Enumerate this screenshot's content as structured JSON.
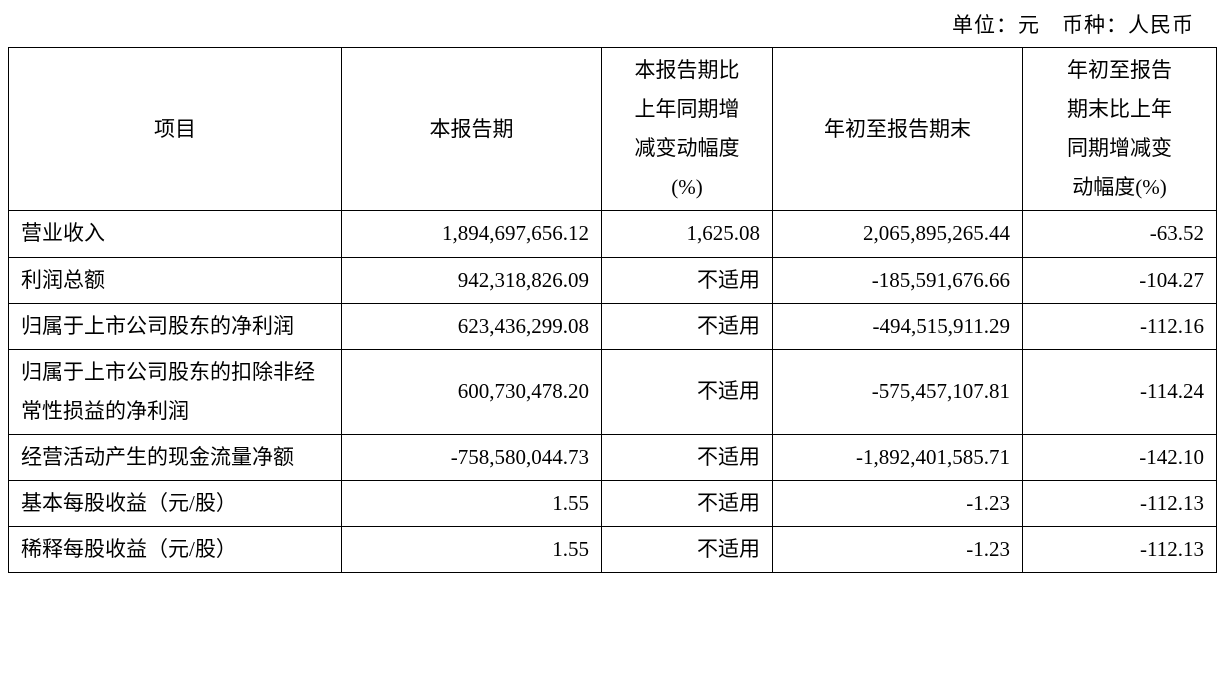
{
  "meta": {
    "unit_label": "单位：元　币种：人民币"
  },
  "table": {
    "headers": {
      "item": "项目",
      "current_period": "本报告期",
      "current_period_change": "本报告期比\n上年同期增\n减变动幅度\n(%)",
      "ytd": "年初至报告期末",
      "ytd_change": "年初至报告\n期末比上年\n同期增减变\n动幅度(%)"
    },
    "rows": [
      {
        "item": "营业收入",
        "current": "1,894,697,656.12",
        "change": "1,625.08",
        "ytd": "2,065,895,265.44",
        "ytd_change": "-63.52"
      },
      {
        "item": "利润总额",
        "current": "942,318,826.09",
        "change": "不适用",
        "ytd": "-185,591,676.66",
        "ytd_change": "-104.27"
      },
      {
        "item": "归属于上市公司股东的净利润",
        "current": "623,436,299.08",
        "change": "不适用",
        "ytd": "-494,515,911.29",
        "ytd_change": "-112.16"
      },
      {
        "item": "归属于上市公司股东的扣除非经常性损益的净利润",
        "current": "600,730,478.20",
        "change": "不适用",
        "ytd": "-575,457,107.81",
        "ytd_change": "-114.24"
      },
      {
        "item": "经营活动产生的现金流量净额",
        "current": "-758,580,044.73",
        "change": "不适用",
        "ytd": "-1,892,401,585.71",
        "ytd_change": "-142.10"
      },
      {
        "item": "基本每股收益（元/股）",
        "current": "1.55",
        "change": "不适用",
        "ytd": "-1.23",
        "ytd_change": "-112.13"
      },
      {
        "item": "稀释每股收益（元/股）",
        "current": "1.55",
        "change": "不适用",
        "ytd": "-1.23",
        "ytd_change": "-112.13"
      }
    ]
  }
}
